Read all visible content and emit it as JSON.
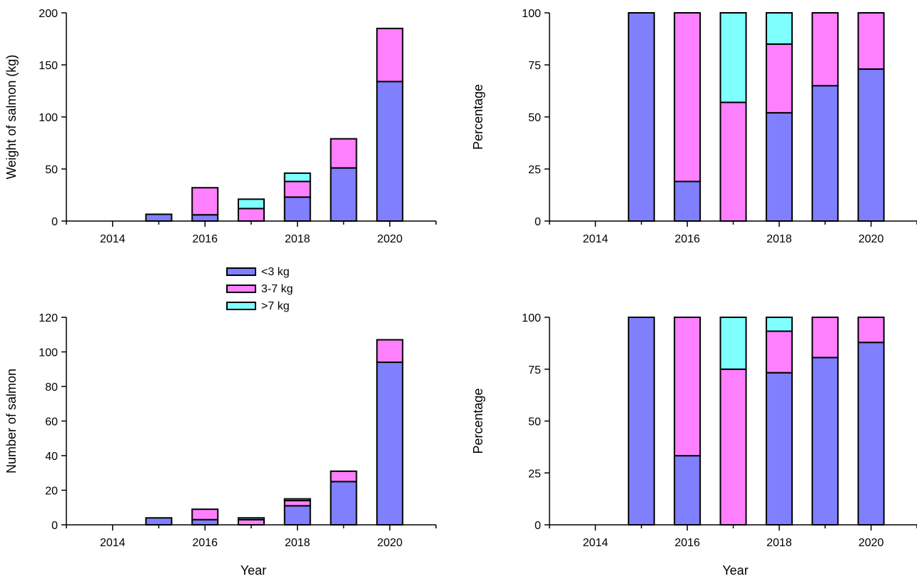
{
  "colors": {
    "lt3": "#8080ff",
    "mid": "#ff80ff",
    "gt7": "#80ffff",
    "axis": "#000000",
    "outline": "#000000"
  },
  "legend": {
    "placement": "between top-left and bottom-left panels",
    "entries": [
      "<3 kg",
      "3-7 kg",
      ">7 kg"
    ]
  },
  "chart_data": [
    {
      "type": "bar",
      "stacked": true,
      "panel": "top-left",
      "x": [
        2015,
        2016,
        2017,
        2018,
        2019,
        2020
      ],
      "xlim": [
        2013,
        2021
      ],
      "xticks": [
        2014,
        2016,
        2018,
        2020
      ],
      "ylim": [
        0,
        200
      ],
      "yticks": [
        0,
        50,
        100,
        150,
        200
      ],
      "xlabel": "",
      "ylabel": "Weight of salmon (kg)",
      "series": [
        {
          "name": "<3 kg",
          "values": [
            6.5,
            6,
            0,
            23,
            51,
            134
          ]
        },
        {
          "name": "3-7 kg",
          "values": [
            0,
            26,
            12,
            15,
            28,
            51
          ]
        },
        {
          "name": ">7 kg",
          "values": [
            0,
            0,
            9,
            8,
            0,
            0
          ]
        }
      ]
    },
    {
      "type": "bar",
      "stacked": true,
      "panel": "top-right",
      "x": [
        2015,
        2016,
        2017,
        2018,
        2019,
        2020
      ],
      "xlim": [
        2013,
        2021
      ],
      "xticks": [
        2014,
        2016,
        2018,
        2020
      ],
      "ylim": [
        0,
        100
      ],
      "yticks": [
        0,
        25,
        50,
        75,
        100
      ],
      "xlabel": "",
      "ylabel": "Percentage",
      "series": [
        {
          "name": "<3 kg",
          "values": [
            100,
            19,
            0,
            52,
            65,
            73
          ]
        },
        {
          "name": "3-7 kg",
          "values": [
            0,
            81,
            57,
            33,
            35,
            27
          ]
        },
        {
          "name": ">7 kg",
          "values": [
            0,
            0,
            43,
            15,
            0,
            0
          ]
        }
      ]
    },
    {
      "type": "bar",
      "stacked": true,
      "panel": "bottom-left",
      "x": [
        2015,
        2016,
        2017,
        2018,
        2019,
        2020
      ],
      "xlim": [
        2013,
        2021
      ],
      "xticks": [
        2014,
        2016,
        2018,
        2020
      ],
      "ylim": [
        0,
        120
      ],
      "yticks": [
        0,
        20,
        40,
        60,
        80,
        100,
        120
      ],
      "xlabel": "Year",
      "ylabel": "Number of salmon",
      "series": [
        {
          "name": "<3 kg",
          "values": [
            4,
            3,
            0,
            11,
            25,
            94
          ]
        },
        {
          "name": "3-7 kg",
          "values": [
            0,
            6,
            3,
            3,
            6,
            13
          ]
        },
        {
          "name": ">7 kg",
          "values": [
            0,
            0,
            1,
            1,
            0,
            0
          ]
        }
      ]
    },
    {
      "type": "bar",
      "stacked": true,
      "panel": "bottom-right",
      "x": [
        2015,
        2016,
        2017,
        2018,
        2019,
        2020
      ],
      "xlim": [
        2013,
        2021
      ],
      "xticks": [
        2014,
        2016,
        2018,
        2020
      ],
      "ylim": [
        0,
        100
      ],
      "yticks": [
        0,
        25,
        50,
        75,
        100
      ],
      "xlabel": "Year",
      "ylabel": "Percentage",
      "series": [
        {
          "name": "<3 kg",
          "values": [
            100,
            33.3,
            0,
            73.3,
            80.6,
            87.9
          ]
        },
        {
          "name": "3-7 kg",
          "values": [
            0,
            66.7,
            75,
            20,
            19.4,
            12.1
          ]
        },
        {
          "name": ">7 kg",
          "values": [
            0,
            0,
            25,
            6.7,
            0,
            0
          ]
        }
      ]
    }
  ]
}
